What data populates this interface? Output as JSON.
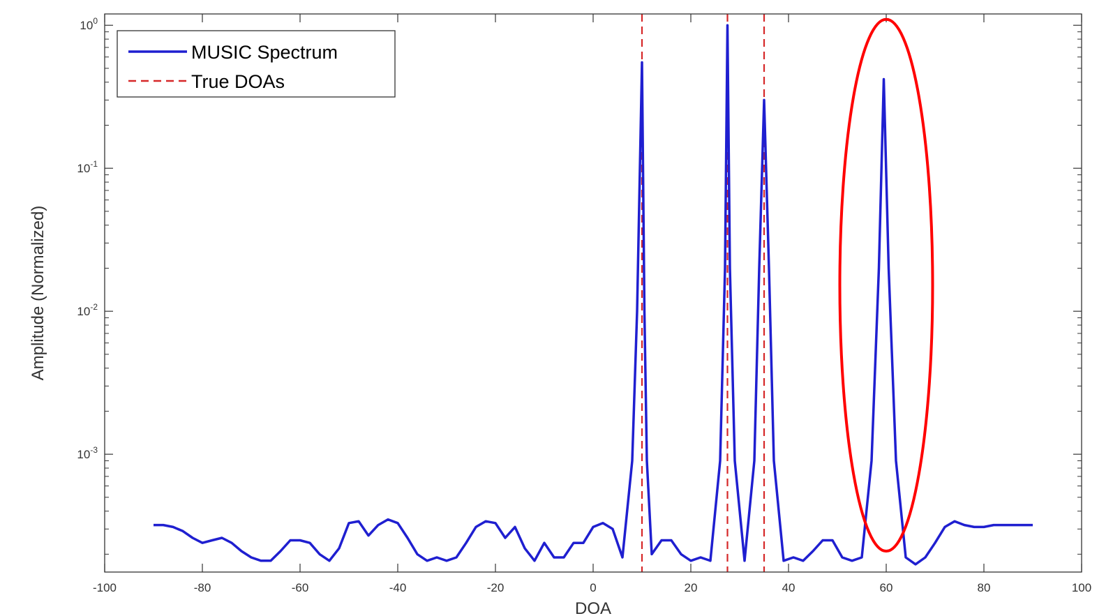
{
  "chart_data": {
    "type": "line",
    "xlabel": "DOA",
    "ylabel": "Amplitude (Normalized)",
    "x_scale": "linear",
    "y_scale": "log",
    "xlim": [
      -100,
      100
    ],
    "ylim": [
      0.00015,
      1.2
    ],
    "x_ticks": [
      "-100",
      "-80",
      "-60",
      "-40",
      "-20",
      "0",
      "20",
      "40",
      "60",
      "80",
      "100"
    ],
    "y_ticks": [
      {
        "base": "10",
        "exp": "0"
      },
      {
        "base": "10",
        "exp": "-1"
      },
      {
        "base": "10",
        "exp": "-2"
      },
      {
        "base": "10",
        "exp": "-3"
      }
    ],
    "legend": {
      "position": "top-left",
      "entries": [
        "MUSIC Spectrum",
        "True DOAs"
      ]
    },
    "colors": {
      "spectrum": "#1f1fd0",
      "true_doa": "#d62728",
      "highlight": "#ff0000"
    },
    "series": [
      {
        "name": "MUSIC Spectrum",
        "style": "solid",
        "x": [
          -90,
          -88,
          -86,
          -84,
          -82,
          -80,
          -78,
          -76,
          -74,
          -72,
          -70,
          -68,
          -66,
          -64,
          -62,
          -60,
          -58,
          -56,
          -54,
          -52,
          -50,
          -48,
          -46,
          -44,
          -42,
          -40,
          -38,
          -36,
          -34,
          -32,
          -30,
          -28,
          -26,
          -24,
          -22,
          -20,
          -18,
          -16,
          -14,
          -12,
          -10,
          -8,
          -6,
          -4,
          -2,
          0,
          2,
          4,
          6,
          8,
          9,
          10,
          10.5,
          11,
          12,
          14,
          16,
          18,
          20,
          22,
          24,
          26,
          27,
          27.5,
          28,
          29,
          31,
          33,
          34,
          35,
          36,
          37,
          39,
          41,
          43,
          45,
          47,
          49,
          51,
          53,
          55,
          57,
          58.5,
          59.5,
          60.5,
          62,
          64,
          66,
          68,
          70,
          72,
          74,
          76,
          78,
          80,
          82,
          84,
          86,
          88,
          90
        ],
        "y": [
          0.00032,
          0.00032,
          0.00031,
          0.00029,
          0.00026,
          0.00024,
          0.00025,
          0.00026,
          0.00024,
          0.00021,
          0.00019,
          0.00018,
          0.00018,
          0.00021,
          0.00025,
          0.00025,
          0.00024,
          0.0002,
          0.00018,
          0.00022,
          0.00033,
          0.00034,
          0.00027,
          0.00032,
          0.00035,
          0.00033,
          0.00026,
          0.0002,
          0.00018,
          0.00019,
          0.00018,
          0.00019,
          0.00024,
          0.00031,
          0.00034,
          0.00033,
          0.00026,
          0.00031,
          0.00022,
          0.00018,
          0.00024,
          0.00019,
          0.00019,
          0.00024,
          0.00024,
          0.00031,
          0.00033,
          0.0003,
          0.00019,
          0.0009,
          0.01,
          0.55,
          0.01,
          0.0009,
          0.0002,
          0.00025,
          0.00025,
          0.0002,
          0.00018,
          0.00019,
          0.00018,
          0.0009,
          0.02,
          1.0,
          0.02,
          0.0009,
          0.00018,
          0.0009,
          0.02,
          0.3,
          0.02,
          0.0009,
          0.00018,
          0.00019,
          0.00018,
          0.00021,
          0.00025,
          0.00025,
          0.00019,
          0.00018,
          0.00019,
          0.0009,
          0.02,
          0.42,
          0.02,
          0.0009,
          0.00019,
          0.00017,
          0.00019,
          0.00024,
          0.00031,
          0.00034,
          0.00032,
          0.00031,
          0.00031,
          0.00032,
          0.00032,
          0.00032,
          0.00032,
          0.00032
        ]
      },
      {
        "name": "True DOAs",
        "style": "dashed",
        "x_positions": [
          10,
          27.5,
          35
        ]
      }
    ],
    "annotations": [
      {
        "type": "ellipse",
        "color": "red",
        "x_center": 60,
        "x_range": [
          52,
          71
        ],
        "y_range": [
          0.00021,
          1.1
        ]
      }
    ]
  }
}
